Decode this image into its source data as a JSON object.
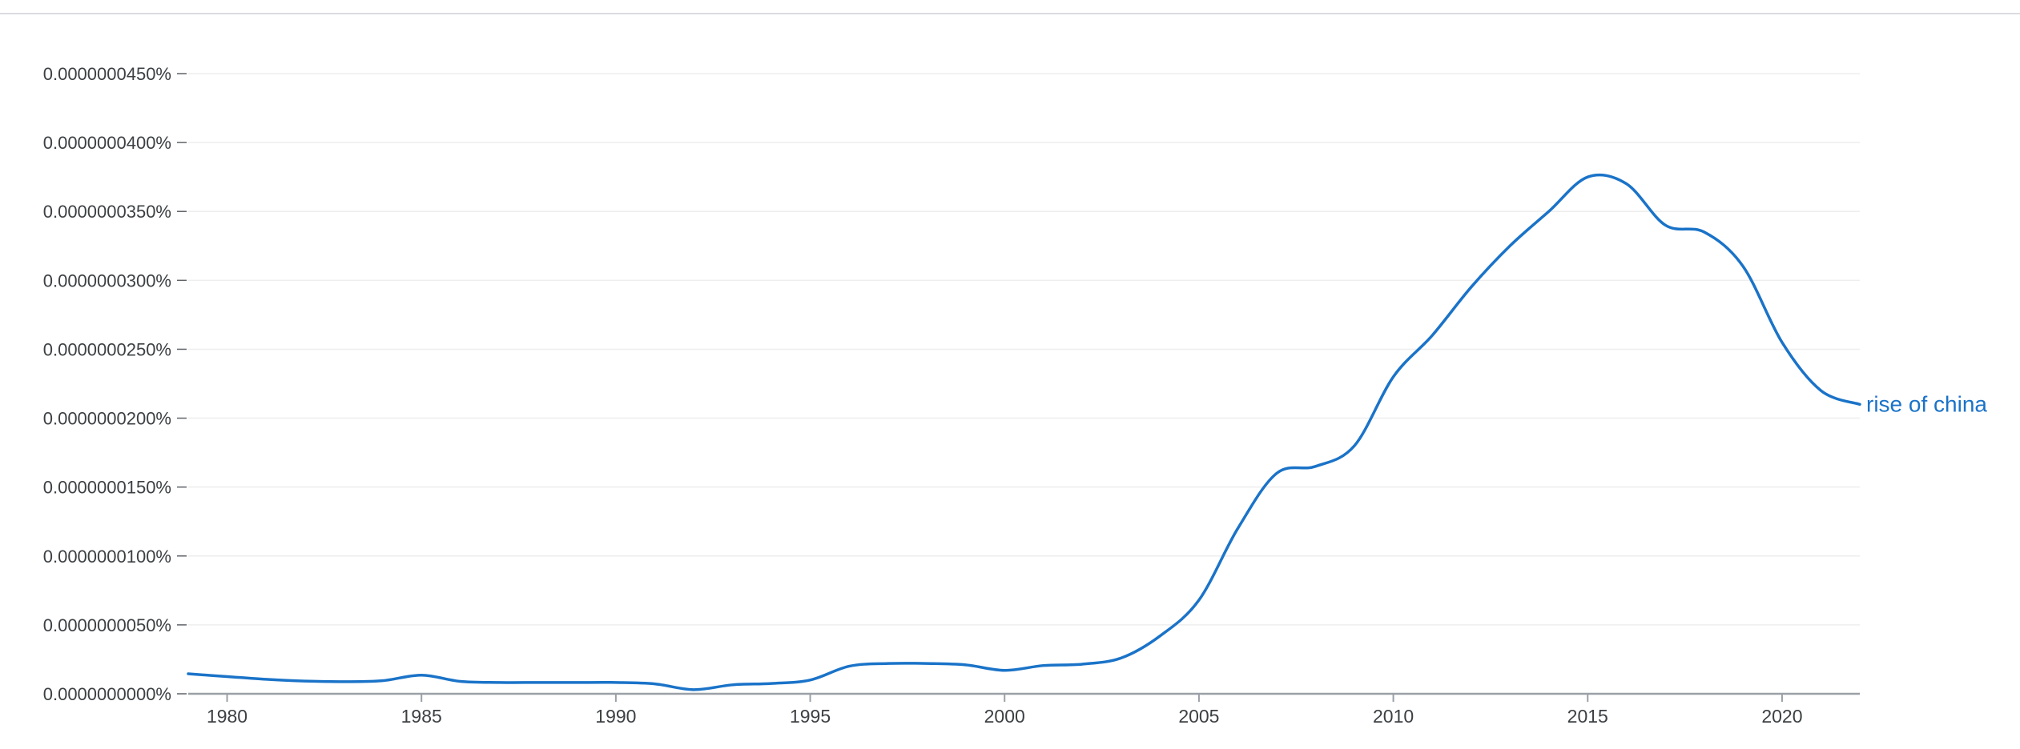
{
  "chart_data": {
    "type": "line",
    "title": "",
    "xlabel": "",
    "ylabel": "",
    "xlim": [
      1979,
      2022
    ],
    "ylim": [
      0,
      4.5e-08
    ],
    "yticks": [
      0,
      5e-09,
      1e-08,
      1.5e-08,
      2e-08,
      2.5e-08,
      3e-08,
      3.5e-08,
      4e-08,
      4.5e-08
    ],
    "ytick_labels": [
      "0.0000000000%",
      "0.0000000050%",
      "0.0000000100%",
      "0.0000000150%",
      "0.0000000200%",
      "0.0000000250%",
      "0.0000000300%",
      "0.0000000350%",
      "0.0000000400%",
      "0.0000000450%"
    ],
    "xticks": [
      1980,
      1985,
      1990,
      1995,
      2000,
      2005,
      2010,
      2015,
      2020
    ],
    "xtick_labels": [
      "1980",
      "1985",
      "1990",
      "1995",
      "2000",
      "2005",
      "2010",
      "2015",
      "2020"
    ],
    "grid": true,
    "legend": "end-of-line label",
    "series": [
      {
        "name": "rise of china",
        "color": "#1a73c8",
        "x": [
          1979,
          1980,
          1981,
          1982,
          1983,
          1984,
          1985,
          1986,
          1987,
          1988,
          1989,
          1990,
          1991,
          1992,
          1993,
          1994,
          1995,
          1996,
          1997,
          1998,
          1999,
          2000,
          2001,
          2002,
          2003,
          2004,
          2005,
          2006,
          2007,
          2008,
          2009,
          2010,
          2011,
          2012,
          2013,
          2014,
          2015,
          2016,
          2017,
          2018,
          2019,
          2020,
          2021,
          2022
        ],
        "values": [
          1.45e-09,
          1.25e-09,
          1.05e-09,
          9.2e-10,
          8.8e-10,
          9.5e-10,
          1.35e-09,
          9e-10,
          8.2e-10,
          8.2e-10,
          8.2e-10,
          8.2e-10,
          7.2e-10,
          3e-10,
          6.5e-10,
          7.5e-10,
          1e-09,
          2e-09,
          2.2e-09,
          2.2e-09,
          2.1e-09,
          1.7e-09,
          2.05e-09,
          2.15e-09,
          2.6e-09,
          4.2e-09,
          6.8e-09,
          1.2e-08,
          1.6e-08,
          1.65e-08,
          1.8e-08,
          2.3e-08,
          2.6e-08,
          2.95e-08,
          3.25e-08,
          3.5e-08,
          3.75e-08,
          3.7e-08,
          3.4e-08,
          3.35e-08,
          3.1e-08,
          2.55e-08,
          2.2e-08,
          2.1e-08
        ]
      }
    ]
  }
}
